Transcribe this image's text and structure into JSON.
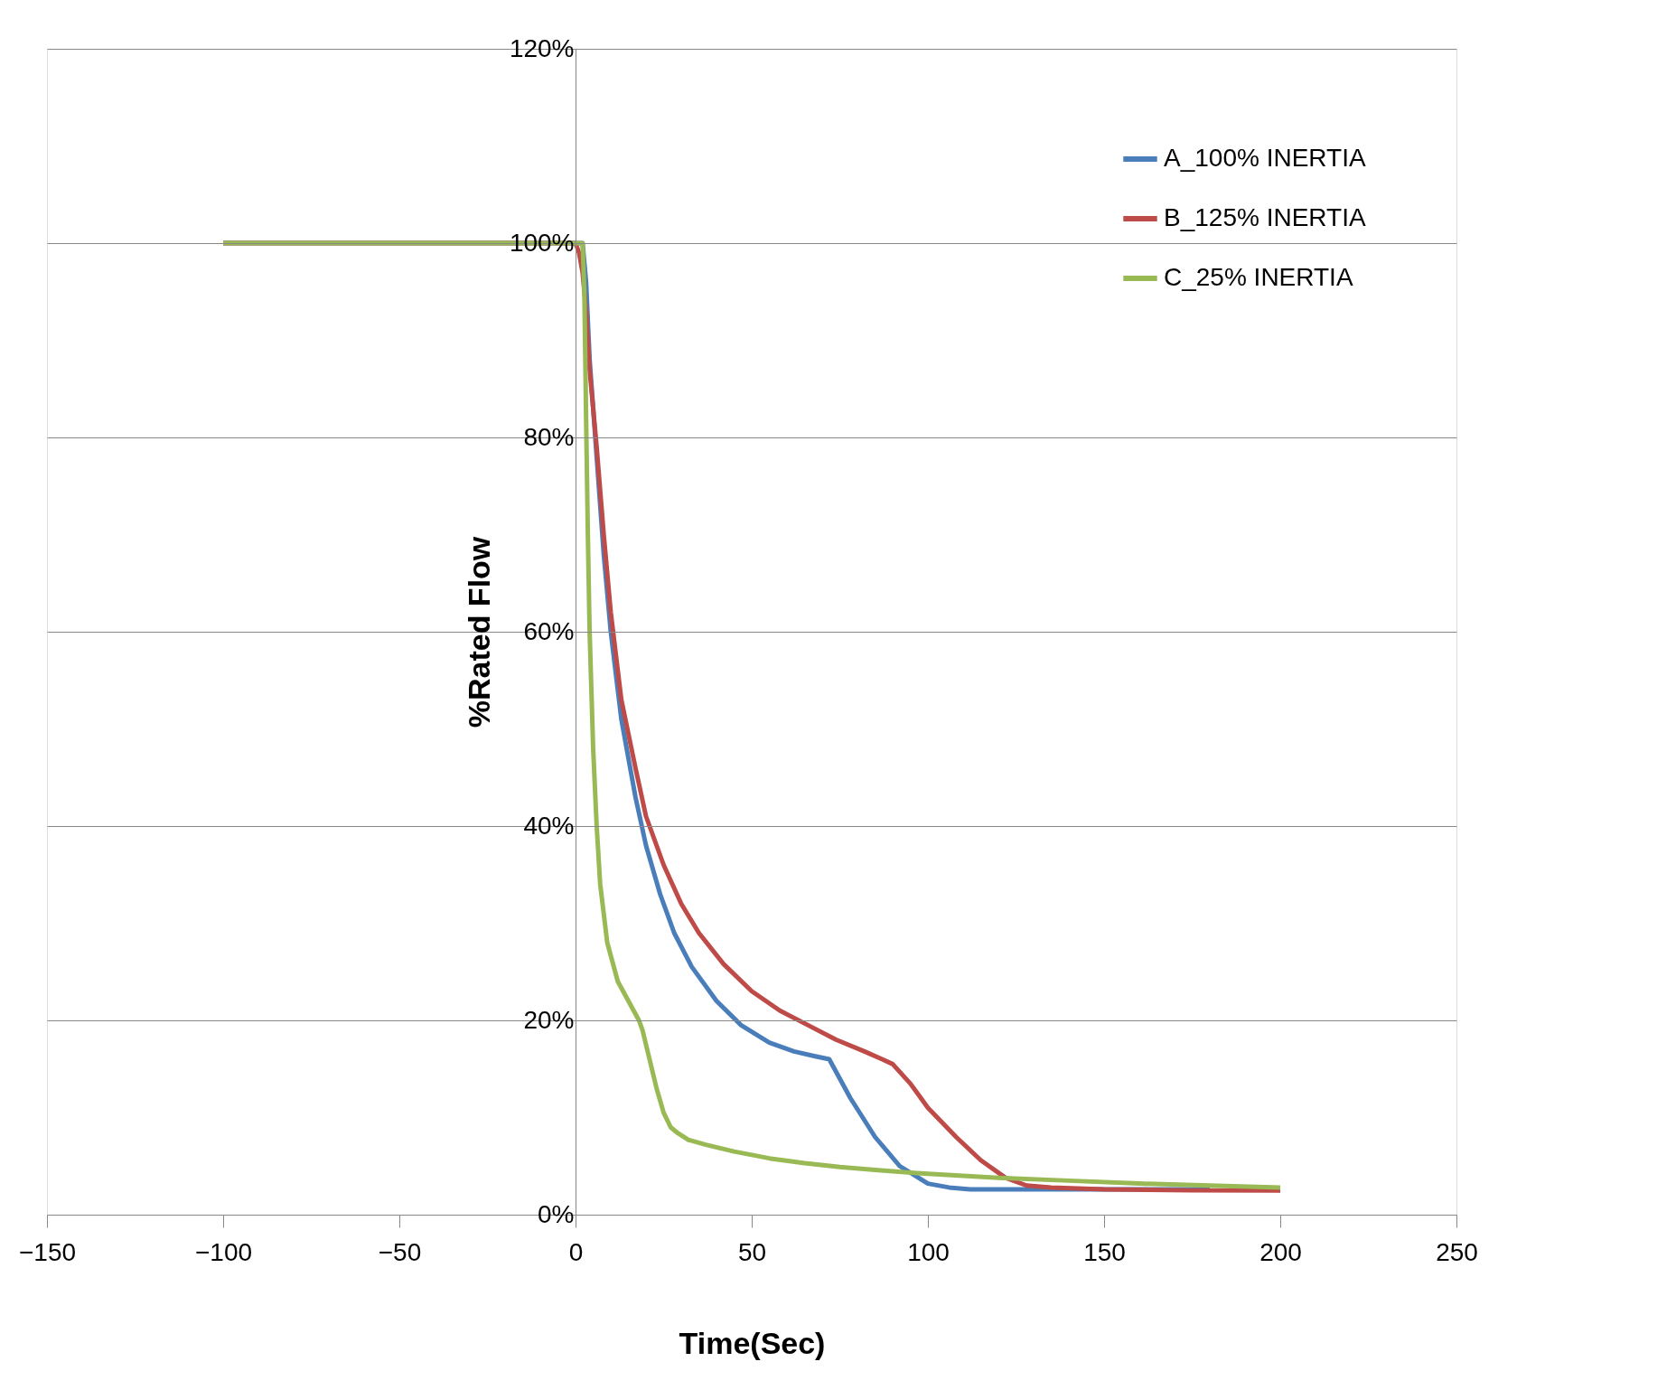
{
  "chart_data": {
    "type": "line",
    "xlabel": "Time(Sec)",
    "ylabel": "%Rated Flow",
    "xlim": [
      -150,
      250
    ],
    "xticks": [
      -150,
      -100,
      -50,
      0,
      50,
      100,
      150,
      200,
      250
    ],
    "ylim": [
      0,
      120
    ],
    "yticks": [
      {
        "value": 0,
        "label": "0%"
      },
      {
        "value": 20,
        "label": "20%"
      },
      {
        "value": 40,
        "label": "40%"
      },
      {
        "value": 60,
        "label": "60%"
      },
      {
        "value": 80,
        "label": "80%"
      },
      {
        "value": 100,
        "label": "100%"
      },
      {
        "value": 120,
        "label": "120%"
      }
    ],
    "grid": "y",
    "legend": "top right",
    "marker": "none",
    "line_style": "solid",
    "series": [
      {
        "name": "A_100% INERTIA",
        "color": "#4a7ebb",
        "x": [
          -100,
          0,
          2,
          3,
          4,
          6,
          8,
          10,
          13,
          17,
          20,
          24,
          28,
          33,
          40,
          47,
          55,
          62,
          68,
          72,
          78,
          85,
          92,
          100,
          106,
          112,
          118,
          125,
          140,
          160,
          180
        ],
        "values": [
          100,
          100,
          100,
          96,
          88,
          78,
          68,
          60,
          51,
          43,
          38,
          33,
          29,
          25.5,
          22,
          19.5,
          17.7,
          16.8,
          16.3,
          16,
          12,
          8,
          5,
          3.2,
          2.8,
          2.6,
          2.6,
          2.6,
          2.6,
          2.6,
          2.6
        ]
      },
      {
        "name": "B_125% INERTIA",
        "color": "#be4b48",
        "x": [
          -100,
          0,
          1,
          2,
          3,
          4,
          6,
          8,
          10,
          13,
          17,
          20,
          25,
          30,
          35,
          42,
          50,
          58,
          66,
          74,
          82,
          87,
          90,
          95,
          100,
          108,
          115,
          122,
          128,
          135,
          150,
          175,
          200
        ],
        "values": [
          100,
          100,
          99,
          97,
          93,
          87,
          79,
          70,
          62,
          53,
          46,
          41,
          36,
          32,
          29,
          25.8,
          23,
          21,
          19.5,
          18,
          16.8,
          16,
          15.5,
          13.5,
          11,
          8,
          5.6,
          3.8,
          3,
          2.8,
          2.6,
          2.5,
          2.5
        ]
      },
      {
        "name": "C_25% INERTIA",
        "color": "#98b954",
        "x": [
          -100,
          0,
          2,
          2.5,
          3,
          3.5,
          4,
          5,
          6,
          7,
          9,
          12,
          15,
          18,
          19,
          21,
          23,
          25,
          27,
          29,
          32,
          37,
          45,
          55,
          65,
          75,
          85,
          100,
          120,
          140,
          160,
          180,
          200
        ],
        "values": [
          100,
          100,
          100,
          95,
          82,
          70,
          60,
          48,
          40,
          34,
          28,
          24,
          22,
          20,
          19,
          16,
          13,
          10.5,
          9,
          8.4,
          7.7,
          7.2,
          6.5,
          5.8,
          5.3,
          4.9,
          4.6,
          4.2,
          3.8,
          3.5,
          3.2,
          3,
          2.8
        ]
      }
    ]
  }
}
